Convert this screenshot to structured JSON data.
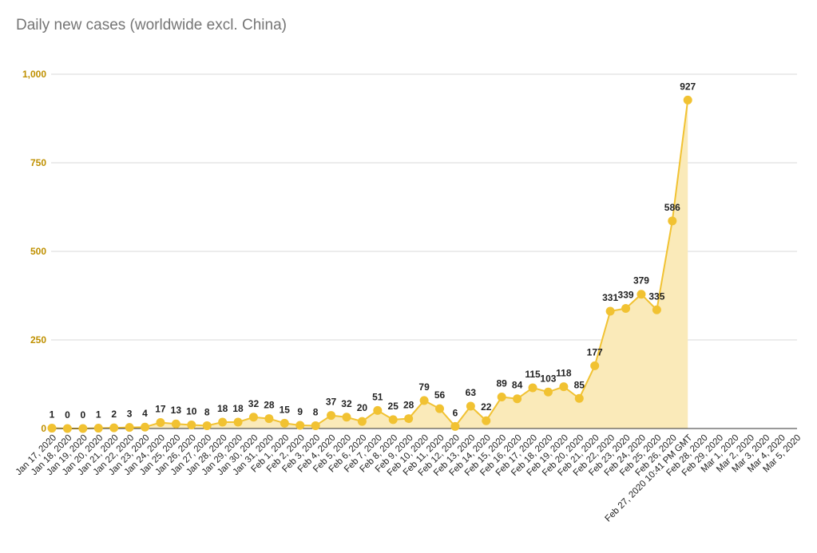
{
  "chart_data": {
    "type": "area",
    "title": "Daily new cases (worldwide excl. China)",
    "xlabel": "",
    "ylabel": "",
    "ylim": [
      0,
      1000
    ],
    "yticks": [
      0,
      250,
      500,
      750,
      1000
    ],
    "ytick_labels": [
      "0",
      "250",
      "500",
      "750",
      "1,000"
    ],
    "grid": true,
    "legend": "none",
    "colors": {
      "line": "#f1c232",
      "fill": "#faeab9",
      "ytick": "#bf9000",
      "grid": "#d9d9d9",
      "axis": "#333333",
      "title": "#757575"
    },
    "categories": [
      "Jan 17, 2020",
      "Jan 18, 2020",
      "Jan 19, 2020",
      "Jan 20, 2020",
      "Jan 21, 2020",
      "Jan 22, 2020",
      "Jan 23, 2020",
      "Jan 24, 2020",
      "Jan 25, 2020",
      "Jan 26, 2020",
      "Jan 27, 2020",
      "Jan 28, 2020",
      "Jan 29, 2020",
      "Jan 30, 2020",
      "Jan 31, 2020",
      "Feb 1, 2020",
      "Feb 2, 2020",
      "Feb 3, 2020",
      "Feb 4, 2020",
      "Feb 5, 2020",
      "Feb 6, 2020",
      "Feb 7, 2020",
      "Feb 8, 2020",
      "Feb 9, 2020",
      "Feb 10, 2020",
      "Feb 11, 2020",
      "Feb 12, 2020",
      "Feb 13, 2020",
      "Feb 14, 2020",
      "Feb 15, 2020",
      "Feb 16, 2020",
      "Feb 17, 2020",
      "Feb 18, 2020",
      "Feb 19, 2020",
      "Feb 20, 2020",
      "Feb 21, 2020",
      "Feb 22, 2020",
      "Feb 23, 2020",
      "Feb 24, 2020",
      "Feb 25, 2020",
      "Feb 26, 2020",
      "Feb 27, 2020  10:41 PM GMT",
      "Feb 28, 2020",
      "Feb 29, 2020",
      "Mar 1, 2020",
      "Mar 2, 2020",
      "Mar 3, 2020",
      "Mar 4, 2020",
      "Mar 5, 2020"
    ],
    "series": [
      {
        "values": [
          1,
          0,
          0,
          1,
          2,
          3,
          4,
          17,
          13,
          10,
          8,
          18,
          18,
          32,
          28,
          15,
          9,
          8,
          37,
          32,
          20,
          51,
          25,
          28,
          79,
          56,
          6,
          63,
          22,
          89,
          84,
          115,
          103,
          118,
          85,
          177,
          331,
          339,
          379,
          335,
          586,
          927,
          null,
          null,
          null,
          null,
          null,
          null,
          null
        ],
        "data_labels": [
          "1",
          "0",
          "0",
          "1",
          "2",
          "3",
          "4",
          "17",
          "13",
          "10",
          "8",
          "18",
          "18",
          "32",
          "28",
          "15",
          "9",
          "8",
          "37",
          "32",
          "20",
          "51",
          "25",
          "28",
          "79",
          "56",
          "6",
          "63",
          "22",
          "89",
          "84",
          "115",
          "103",
          "118",
          "85",
          "177",
          "331",
          "339",
          "379",
          "335",
          "586",
          "927"
        ]
      }
    ]
  }
}
